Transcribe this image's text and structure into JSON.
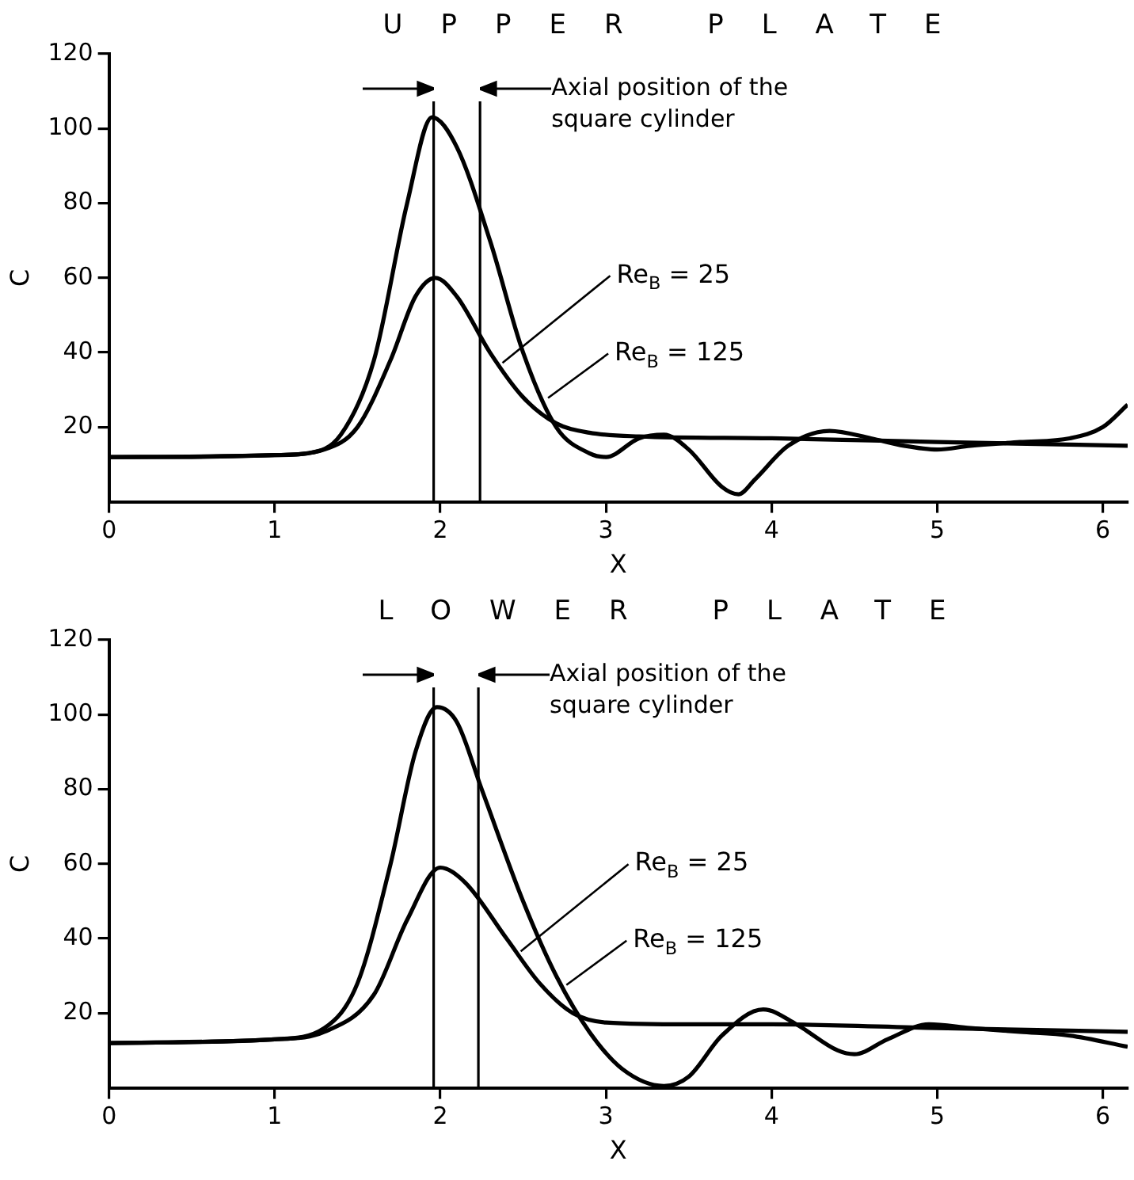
{
  "chart_data": [
    {
      "type": "line",
      "title": "UPPER PLATE",
      "xlabel": "X",
      "ylabel": "C",
      "xlim": [
        0,
        6.15
      ],
      "ylim": [
        0,
        120
      ],
      "xticks": [
        0,
        1,
        2,
        3,
        4,
        5,
        6
      ],
      "yticks": [
        20,
        40,
        60,
        80,
        100,
        120
      ],
      "legend": false,
      "marker": "none",
      "annotations": [
        "Axial position of the square cylinder"
      ],
      "ref_lines": [
        {
          "axis": "x",
          "value": 1.96,
          "color": "#000000"
        },
        {
          "axis": "x",
          "value": 2.24,
          "color": "#000000"
        }
      ],
      "series": [
        {
          "name": "Re$_{B}$ = 25",
          "color": "#000000",
          "x": [
            0,
            1,
            1.3,
            1.5,
            1.7,
            1.85,
            1.97,
            2.1,
            2.3,
            2.5,
            2.7,
            2.9,
            3.2,
            4,
            5,
            6.15
          ],
          "values": [
            12,
            12.5,
            14,
            20,
            38,
            55,
            60,
            55,
            40,
            28,
            21,
            18.5,
            17.5,
            17,
            16,
            15
          ]
        },
        {
          "name": "Re$_{B}$ = 125",
          "color": "#000000",
          "x": [
            0,
            0.5,
            1,
            1.2,
            1.4,
            1.6,
            1.8,
            1.95,
            2.1,
            2.3,
            2.5,
            2.7,
            2.9,
            3,
            3.2,
            3.35,
            3.5,
            3.7,
            3.8,
            3.9,
            4.1,
            4.35,
            4.6,
            4.8,
            5,
            5.2,
            5.5,
            5.8,
            6,
            6.15
          ],
          "values": [
            12,
            12,
            12.5,
            13,
            18,
            38,
            80,
            103,
            95,
            70,
            40,
            20,
            13,
            12,
            17,
            18,
            14,
            4,
            2,
            6,
            15,
            19,
            17,
            15,
            14,
            15,
            16,
            17,
            20,
            26
          ]
        }
      ]
    },
    {
      "type": "line",
      "title": "LOWER PLATE",
      "xlabel": "X",
      "ylabel": "C",
      "xlim": [
        0,
        6.15
      ],
      "ylim": [
        0,
        120
      ],
      "xticks": [
        0,
        1,
        2,
        3,
        4,
        5,
        6
      ],
      "yticks": [
        20,
        40,
        60,
        80,
        100,
        120
      ],
      "legend": false,
      "marker": "none",
      "annotations": [
        "Axial position of the square cylinder"
      ],
      "ref_lines": [
        {
          "axis": "x",
          "value": 1.96,
          "color": "#000000"
        },
        {
          "axis": "x",
          "value": 2.23,
          "color": "#000000"
        }
      ],
      "series": [
        {
          "name": "Re$_{B}$ = 25",
          "color": "#000000",
          "x": [
            0,
            1,
            1.3,
            1.6,
            1.8,
            2,
            2.15,
            2.4,
            2.6,
            2.8,
            3,
            3.5,
            4,
            5,
            6.15
          ],
          "values": [
            12,
            13,
            15,
            25,
            45,
            59,
            55,
            40,
            28,
            20,
            17.5,
            17,
            17,
            16,
            15
          ]
        },
        {
          "name": "Re$_{B}$ = 125",
          "color": "#000000",
          "x": [
            0,
            1,
            1.3,
            1.5,
            1.7,
            1.85,
            1.98,
            2.1,
            2.25,
            2.5,
            2.7,
            2.9,
            3.1,
            3.35,
            3.5,
            3.7,
            3.95,
            4.15,
            4.4,
            4.5,
            4.7,
            4.95,
            5.2,
            5.5,
            5.8,
            6.15
          ],
          "values": [
            12,
            13,
            16,
            28,
            60,
            90,
            102,
            98,
            80,
            50,
            30,
            15,
            5,
            0.5,
            3,
            14,
            21,
            17,
            10,
            9,
            13,
            17,
            16,
            15,
            14,
            11
          ]
        }
      ]
    }
  ]
}
